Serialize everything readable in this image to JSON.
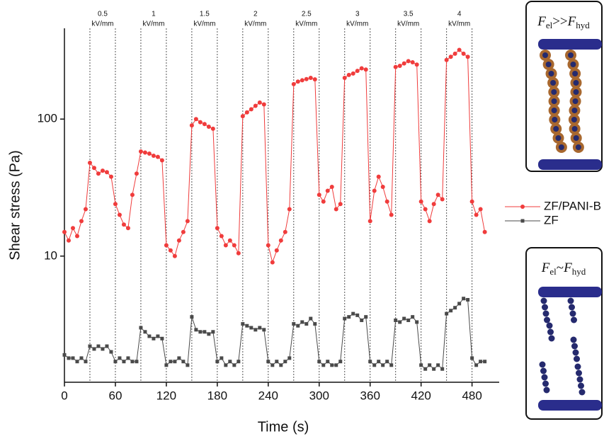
{
  "chart_data": {
    "type": "line",
    "x_label": "Time (s)",
    "y_label": "Shear stress (Pa)",
    "y_scale": "log",
    "xlim": [
      0,
      512
    ],
    "ylim": [
      1.2,
      460
    ],
    "xticks": [
      0,
      60,
      120,
      180,
      240,
      300,
      360,
      420,
      480
    ],
    "yticks": [
      10,
      100
    ],
    "legend": "right",
    "x": [
      0,
      5,
      10,
      15,
      20,
      25,
      30,
      35,
      40,
      45,
      50,
      55,
      60,
      65,
      70,
      75,
      80,
      85,
      90,
      95,
      100,
      105,
      110,
      115,
      120,
      125,
      130,
      135,
      140,
      145,
      150,
      155,
      160,
      165,
      170,
      175,
      180,
      185,
      190,
      195,
      200,
      205,
      210,
      215,
      220,
      225,
      230,
      235,
      240,
      245,
      250,
      255,
      260,
      265,
      270,
      275,
      280,
      285,
      290,
      295,
      300,
      305,
      310,
      315,
      320,
      325,
      330,
      335,
      340,
      345,
      350,
      355,
      360,
      365,
      370,
      375,
      380,
      385,
      390,
      395,
      400,
      405,
      410,
      415,
      420,
      425,
      430,
      435,
      440,
      445,
      450,
      455,
      460,
      465,
      470,
      475,
      480,
      485,
      490,
      495
    ],
    "series": [
      {
        "name": "ZF/PANI-B",
        "color": "#f03c3c",
        "marker": "circle",
        "values": [
          15,
          13,
          16,
          14,
          18,
          22,
          48,
          44,
          40,
          42,
          41,
          38,
          24,
          20,
          17,
          16,
          28,
          40,
          58,
          57,
          56,
          54,
          53,
          50,
          12,
          11,
          10,
          13,
          15,
          18,
          90,
          100,
          95,
          92,
          88,
          85,
          16,
          14,
          12,
          13,
          12,
          10.5,
          105,
          112,
          118,
          125,
          132,
          128,
          12,
          9,
          11,
          13,
          15,
          22,
          180,
          188,
          192,
          196,
          200,
          195,
          28,
          25,
          30,
          32,
          22,
          24,
          200,
          210,
          215,
          225,
          235,
          230,
          18,
          30,
          38,
          32,
          25,
          20,
          240,
          245,
          255,
          265,
          260,
          250,
          25,
          22,
          18,
          24,
          28,
          26,
          270,
          285,
          300,
          320,
          300,
          285,
          25,
          20,
          22,
          15
        ]
      },
      {
        "name": "ZF",
        "color": "#4a4a4a",
        "marker": "square",
        "values": [
          1.9,
          1.8,
          1.8,
          1.7,
          1.8,
          1.7,
          2.2,
          2.1,
          2.2,
          2.1,
          2.2,
          2.0,
          1.7,
          1.8,
          1.7,
          1.8,
          1.7,
          1.7,
          3.0,
          2.8,
          2.6,
          2.5,
          2.6,
          2.5,
          1.6,
          1.7,
          1.7,
          1.8,
          1.7,
          1.6,
          3.6,
          2.9,
          2.8,
          2.8,
          2.7,
          2.8,
          1.7,
          1.8,
          1.6,
          1.7,
          1.6,
          1.7,
          3.2,
          3.1,
          3.0,
          2.9,
          3.0,
          2.9,
          1.7,
          1.6,
          1.7,
          1.6,
          1.7,
          1.8,
          3.2,
          3.1,
          3.3,
          3.2,
          3.5,
          3.2,
          1.7,
          1.6,
          1.7,
          1.6,
          1.6,
          1.7,
          3.5,
          3.6,
          3.8,
          3.7,
          3.4,
          3.6,
          1.7,
          1.6,
          1.7,
          1.6,
          1.7,
          1.6,
          3.4,
          3.3,
          3.5,
          3.4,
          3.6,
          3.3,
          1.6,
          1.5,
          1.6,
          1.5,
          1.6,
          1.5,
          3.8,
          4.0,
          4.2,
          4.5,
          4.9,
          4.8,
          1.8,
          1.6,
          1.7,
          1.7
        ]
      }
    ],
    "switch_times": [
      30,
      60,
      90,
      120,
      150,
      180,
      210,
      240,
      270,
      300,
      330,
      360,
      390,
      420,
      450,
      480
    ],
    "field_values": [
      "0.5",
      "1",
      "1.5",
      "2",
      "2.5",
      "3",
      "3.5",
      "4"
    ],
    "field_unit": "kV/mm"
  },
  "insets": [
    {
      "text": [
        "F",
        "el",
        ">>",
        "F",
        "hyd"
      ]
    },
    {
      "text": [
        "F",
        "el",
        "~",
        "F",
        "hyd"
      ]
    }
  ]
}
